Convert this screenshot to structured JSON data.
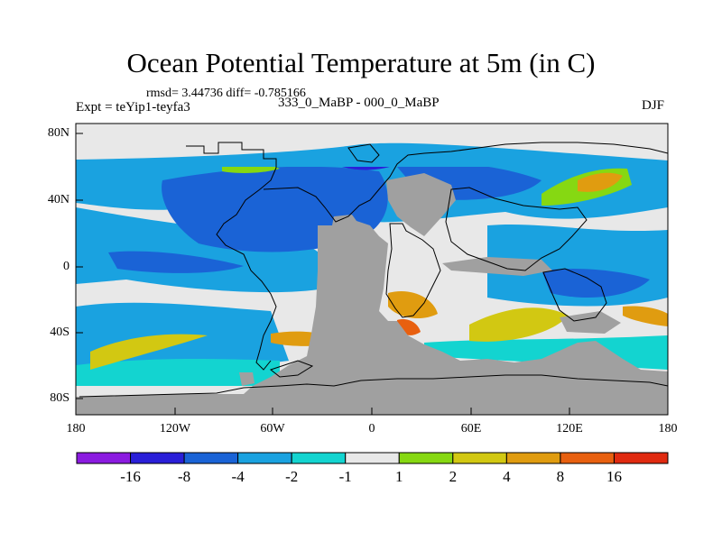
{
  "title": "Ocean Potential Temperature at 5m (in C)",
  "stats": "rmsd= 3.44736 diff= -0.785166",
  "experiment": "Expt = teYip1-teyfa3",
  "subtitle": "333_0_MaBP - 000_0_MaBP",
  "season": "DJF",
  "map": {
    "projection": "cylindrical equidistant",
    "lon_range": [
      -180,
      180
    ],
    "lat_range": [
      -90,
      90
    ],
    "land_color": "#a0a0a0",
    "y_ticks": [
      "80N",
      "40N",
      "0",
      "40S",
      "80S"
    ],
    "x_ticks": [
      "180",
      "120W",
      "60W",
      "0",
      "60E",
      "120E",
      "180"
    ]
  },
  "colorbar": {
    "colors": [
      "#8b1be0",
      "#2a1fd8",
      "#1a63d6",
      "#1aa2e0",
      "#13d4d0",
      "#e8e8e8",
      "#86d812",
      "#d2c812",
      "#e09c10",
      "#e86010",
      "#e02a10"
    ],
    "labels": [
      "-16",
      "-8",
      "-4",
      "-2",
      "-1",
      "1",
      "2",
      "4",
      "8",
      "16"
    ]
  }
}
